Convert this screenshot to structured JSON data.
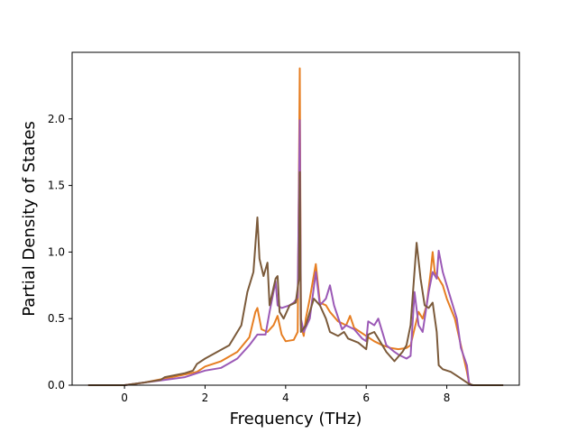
{
  "chart_data": {
    "type": "line",
    "title": "",
    "xlabel": "Frequency (THz)",
    "ylabel": "Partial Density of States",
    "xlim": [
      -1.3,
      9.8
    ],
    "ylim": [
      0,
      2.5
    ],
    "x_ticks": [
      0,
      2,
      4,
      6,
      8
    ],
    "y_ticks": [
      0.0,
      0.5,
      1.0,
      1.5,
      2.0
    ],
    "x_tick_labels": [
      "0",
      "2",
      "4",
      "6",
      "8"
    ],
    "y_tick_labels": [
      "0.0",
      "0.5",
      "1.0",
      "1.5",
      "2.0"
    ],
    "grid": false,
    "legend": "none",
    "series": [
      {
        "color": "#e67e22",
        "points": [
          [
            -0.9,
            0
          ],
          [
            0,
            0
          ],
          [
            0.5,
            0.02
          ],
          [
            1.0,
            0.05
          ],
          [
            1.5,
            0.08
          ],
          [
            1.8,
            0.1
          ],
          [
            2.0,
            0.14
          ],
          [
            2.4,
            0.18
          ],
          [
            2.8,
            0.25
          ],
          [
            3.1,
            0.36
          ],
          [
            3.25,
            0.55
          ],
          [
            3.3,
            0.58
          ],
          [
            3.4,
            0.42
          ],
          [
            3.55,
            0.4
          ],
          [
            3.7,
            0.45
          ],
          [
            3.8,
            0.52
          ],
          [
            3.9,
            0.38
          ],
          [
            4.0,
            0.33
          ],
          [
            4.2,
            0.34
          ],
          [
            4.3,
            0.4
          ],
          [
            4.35,
            2.38
          ],
          [
            4.38,
            0.45
          ],
          [
            4.45,
            0.37
          ],
          [
            4.5,
            0.5
          ],
          [
            4.6,
            0.65
          ],
          [
            4.75,
            0.91
          ],
          [
            4.85,
            0.62
          ],
          [
            5.0,
            0.6
          ],
          [
            5.1,
            0.55
          ],
          [
            5.3,
            0.48
          ],
          [
            5.5,
            0.45
          ],
          [
            5.6,
            0.52
          ],
          [
            5.7,
            0.43
          ],
          [
            6.0,
            0.37
          ],
          [
            6.2,
            0.33
          ],
          [
            6.4,
            0.3
          ],
          [
            6.6,
            0.28
          ],
          [
            6.8,
            0.27
          ],
          [
            7.0,
            0.28
          ],
          [
            7.1,
            0.3
          ],
          [
            7.3,
            0.55
          ],
          [
            7.4,
            0.5
          ],
          [
            7.5,
            0.6
          ],
          [
            7.6,
            0.85
          ],
          [
            7.65,
            1.0
          ],
          [
            7.7,
            0.85
          ],
          [
            7.8,
            0.8
          ],
          [
            7.9,
            0.75
          ],
          [
            8.0,
            0.65
          ],
          [
            8.2,
            0.5
          ],
          [
            8.35,
            0.3
          ],
          [
            8.5,
            0.1
          ],
          [
            8.55,
            0.02
          ],
          [
            8.6,
            0
          ],
          [
            9.4,
            0
          ]
        ]
      },
      {
        "color": "#9b59b6",
        "points": [
          [
            -0.9,
            0
          ],
          [
            0,
            0
          ],
          [
            0.5,
            0.02
          ],
          [
            1.0,
            0.04
          ],
          [
            1.5,
            0.06
          ],
          [
            1.8,
            0.09
          ],
          [
            2.0,
            0.11
          ],
          [
            2.4,
            0.13
          ],
          [
            2.8,
            0.2
          ],
          [
            3.1,
            0.3
          ],
          [
            3.3,
            0.38
          ],
          [
            3.5,
            0.38
          ],
          [
            3.6,
            0.55
          ],
          [
            3.75,
            0.78
          ],
          [
            3.8,
            0.6
          ],
          [
            3.9,
            0.58
          ],
          [
            4.1,
            0.6
          ],
          [
            4.2,
            0.62
          ],
          [
            4.3,
            0.66
          ],
          [
            4.35,
            1.99
          ],
          [
            4.38,
            0.5
          ],
          [
            4.45,
            0.4
          ],
          [
            4.6,
            0.5
          ],
          [
            4.75,
            0.85
          ],
          [
            4.85,
            0.6
          ],
          [
            5.0,
            0.65
          ],
          [
            5.1,
            0.75
          ],
          [
            5.2,
            0.6
          ],
          [
            5.4,
            0.42
          ],
          [
            5.5,
            0.45
          ],
          [
            5.7,
            0.42
          ],
          [
            5.9,
            0.35
          ],
          [
            6.0,
            0.33
          ],
          [
            6.05,
            0.48
          ],
          [
            6.2,
            0.45
          ],
          [
            6.3,
            0.5
          ],
          [
            6.5,
            0.3
          ],
          [
            6.7,
            0.25
          ],
          [
            6.8,
            0.23
          ],
          [
            7.0,
            0.2
          ],
          [
            7.1,
            0.22
          ],
          [
            7.2,
            0.7
          ],
          [
            7.3,
            0.45
          ],
          [
            7.4,
            0.4
          ],
          [
            7.55,
            0.7
          ],
          [
            7.65,
            0.85
          ],
          [
            7.75,
            0.8
          ],
          [
            7.8,
            1.01
          ],
          [
            7.9,
            0.85
          ],
          [
            8.1,
            0.65
          ],
          [
            8.25,
            0.5
          ],
          [
            8.35,
            0.28
          ],
          [
            8.5,
            0.15
          ],
          [
            8.55,
            0.02
          ],
          [
            8.6,
            0
          ],
          [
            9.4,
            0
          ]
        ]
      },
      {
        "color": "#7b5a3a",
        "points": [
          [
            -0.9,
            0
          ],
          [
            0,
            0
          ],
          [
            0.5,
            0.02
          ],
          [
            0.9,
            0.04
          ],
          [
            1.0,
            0.06
          ],
          [
            1.5,
            0.09
          ],
          [
            1.7,
            0.11
          ],
          [
            1.8,
            0.16
          ],
          [
            2.0,
            0.2
          ],
          [
            2.3,
            0.25
          ],
          [
            2.6,
            0.3
          ],
          [
            2.9,
            0.45
          ],
          [
            3.05,
            0.7
          ],
          [
            3.2,
            0.85
          ],
          [
            3.3,
            1.26
          ],
          [
            3.35,
            0.95
          ],
          [
            3.45,
            0.82
          ],
          [
            3.55,
            0.92
          ],
          [
            3.6,
            0.6
          ],
          [
            3.75,
            0.8
          ],
          [
            3.8,
            0.82
          ],
          [
            3.85,
            0.55
          ],
          [
            3.95,
            0.5
          ],
          [
            4.1,
            0.6
          ],
          [
            4.25,
            0.62
          ],
          [
            4.33,
            0.8
          ],
          [
            4.35,
            1.6
          ],
          [
            4.38,
            0.4
          ],
          [
            4.5,
            0.45
          ],
          [
            4.7,
            0.65
          ],
          [
            4.85,
            0.6
          ],
          [
            5.0,
            0.5
          ],
          [
            5.1,
            0.4
          ],
          [
            5.3,
            0.37
          ],
          [
            5.45,
            0.4
          ],
          [
            5.55,
            0.35
          ],
          [
            5.8,
            0.32
          ],
          [
            6.0,
            0.27
          ],
          [
            6.05,
            0.38
          ],
          [
            6.2,
            0.4
          ],
          [
            6.4,
            0.3
          ],
          [
            6.5,
            0.25
          ],
          [
            6.7,
            0.18
          ],
          [
            6.9,
            0.25
          ],
          [
            7.0,
            0.3
          ],
          [
            7.1,
            0.45
          ],
          [
            7.25,
            1.07
          ],
          [
            7.35,
            0.8
          ],
          [
            7.45,
            0.6
          ],
          [
            7.55,
            0.58
          ],
          [
            7.65,
            0.62
          ],
          [
            7.75,
            0.4
          ],
          [
            7.8,
            0.15
          ],
          [
            7.9,
            0.12
          ],
          [
            8.1,
            0.1
          ],
          [
            8.3,
            0.06
          ],
          [
            8.45,
            0.03
          ],
          [
            8.55,
            0.01
          ],
          [
            8.65,
            0
          ],
          [
            9.4,
            0
          ]
        ]
      }
    ]
  }
}
